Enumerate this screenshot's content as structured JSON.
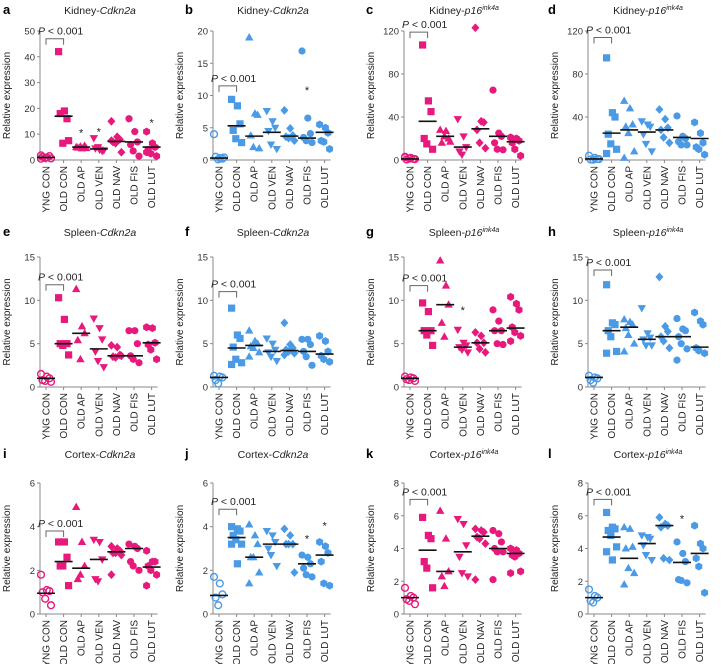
{
  "colors": {
    "pink": "#e8197d",
    "blue": "#4a9ae6",
    "median": "#111111"
  },
  "categories": [
    "YNG CON",
    "OLD CON",
    "OLD AP",
    "OLD VEN",
    "OLD NAV",
    "OLD FIS",
    "OLD LUT"
  ],
  "markers": [
    "open-circle",
    "square",
    "triangle-up",
    "triangle-down",
    "diamond",
    "circle",
    "hexagon"
  ],
  "ylabel": "Relative expression",
  "p_label": {
    "p": "P",
    "rest": " < 0.001"
  },
  "star": "*",
  "chart_data": [
    {
      "type": "scatter",
      "letter": "a",
      "tissue": "Kidney-",
      "gene": "Cdkn2a",
      "sup": "",
      "color": "pink",
      "ylim": [
        0,
        50
      ],
      "ticks": [
        0,
        10,
        20,
        30,
        40,
        50
      ],
      "bracket": 47,
      "points": [
        [
          0.5,
          1,
          1.5,
          1.2,
          0.8,
          0.6,
          1.8
        ],
        [
          42,
          19,
          16,
          18,
          6.5,
          7.5
        ],
        [
          5,
          4.5,
          5.5,
          4.8,
          5.2,
          4.6
        ],
        [
          8.5,
          4,
          3.5,
          4.5,
          5,
          3.8
        ],
        [
          15,
          9,
          8,
          7,
          6.5,
          3,
          7.5
        ],
        [
          16,
          11,
          7,
          6,
          3.5,
          1.5
        ],
        [
          11,
          6.5,
          5,
          4,
          2.5,
          1.5,
          3
        ]
      ],
      "medians": [
        1,
        17,
        5,
        4.3,
        7.2,
        7,
        5
      ],
      "stars": [
        [
          2,
          11
        ],
        [
          3,
          11.5
        ],
        [
          6,
          15
        ]
      ]
    },
    {
      "type": "scatter",
      "letter": "b",
      "tissue": "Kidney-",
      "gene": "Cdkn2a",
      "sup": "",
      "color": "blue",
      "ylim": [
        0,
        20
      ],
      "ticks": [
        0,
        5,
        10,
        15,
        20
      ],
      "bracket": 11.5,
      "points": [
        [
          4,
          0.3,
          0.2,
          0.5,
          0.1,
          0.4
        ],
        [
          9.4,
          8.4,
          5.6,
          4.6,
          3.3,
          2.7
        ],
        [
          19,
          7.2,
          7,
          3.8,
          2,
          1.8
        ],
        [
          7.6,
          6,
          5,
          4.5,
          2.4,
          1.7
        ],
        [
          7.7,
          4.9,
          3.8,
          3.6,
          3.4,
          3
        ],
        [
          16.9,
          6.5,
          4.1,
          3.5,
          3,
          2.7
        ],
        [
          5.5,
          5,
          4.2,
          3,
          2.8,
          1.7
        ]
      ],
      "medians": [
        0.3,
        5.3,
        3.7,
        4.3,
        3.7,
        3.4,
        4.3
      ],
      "stars": [
        [
          5,
          11
        ]
      ]
    },
    {
      "type": "scatter",
      "letter": "c",
      "tissue": "Kidney-",
      "gene": "p16",
      "sup": "ink4a",
      "color": "pink",
      "ylim": [
        0,
        120
      ],
      "ticks": [
        0,
        40,
        80,
        120
      ],
      "bracket": 119,
      "points": [
        [
          3,
          2,
          1,
          0.5,
          1.5,
          0.8,
          2.5
        ],
        [
          107,
          55,
          45,
          20,
          15,
          10
        ],
        [
          28,
          27,
          20,
          16,
          22,
          17
        ],
        [
          38,
          22,
          12,
          8,
          5
        ],
        [
          123,
          36,
          35,
          28,
          16,
          11
        ],
        [
          65,
          25,
          22,
          16,
          10,
          9.5
        ],
        [
          21,
          20,
          18,
          16,
          10,
          4
        ]
      ],
      "medians": [
        1,
        36,
        22,
        12,
        29,
        22,
        17
      ],
      "stars": []
    },
    {
      "type": "scatter",
      "letter": "d",
      "tissue": "Kidney-",
      "gene": "p16",
      "sup": "ink4a",
      "color": "blue",
      "ylim": [
        0,
        120
      ],
      "ticks": [
        0,
        40,
        80,
        120
      ],
      "bracket": 114,
      "points": [
        [
          4,
          2,
          1,
          0.5,
          0.3,
          0.8
        ],
        [
          95,
          44,
          40,
          24,
          15,
          10,
          6
        ],
        [
          55,
          48,
          33,
          31,
          25,
          8,
          2
        ],
        [
          36,
          33,
          31,
          24,
          15,
          8
        ],
        [
          47,
          38,
          30,
          28,
          21,
          16
        ],
        [
          41,
          22,
          20,
          17,
          14,
          14
        ],
        [
          35,
          25,
          16,
          12,
          10,
          5
        ]
      ],
      "medians": [
        1,
        25,
        28,
        26,
        28,
        21,
        20
      ],
      "stars": []
    },
    {
      "type": "scatter",
      "letter": "e",
      "tissue": "Spleen-",
      "gene": "Cdkn2a",
      "sup": "",
      "color": "pink",
      "ylim": [
        0,
        15
      ],
      "ticks": [
        0,
        5,
        10,
        15
      ],
      "bracket": 11.8,
      "points": [
        [
          1.5,
          1.2,
          1,
          0.8,
          0.7,
          0.6
        ],
        [
          10.3,
          7.8,
          5,
          5,
          4.8,
          3.7
        ],
        [
          11.3,
          7,
          6.2,
          5.4,
          3.2
        ],
        [
          7.9,
          6.8,
          5.5,
          4.1,
          3,
          2.3
        ],
        [
          4.8,
          4.6,
          3.7,
          3.5,
          3.4,
          3.6
        ],
        [
          6.5,
          6.5,
          5,
          3.6,
          3.2,
          2.8
        ],
        [
          6.9,
          6.8,
          5.1,
          4.9,
          4.3,
          3.2
        ]
      ],
      "medians": [
        1,
        5,
        6.2,
        4.4,
        3.6,
        3.6,
        5.1
      ],
      "stars": []
    },
    {
      "type": "scatter",
      "letter": "f",
      "tissue": "Spleen-",
      "gene": "Cdkn2a",
      "sup": "",
      "color": "blue",
      "ylim": [
        0,
        15
      ],
      "ticks": [
        0,
        5,
        10,
        15
      ],
      "bracket": 11,
      "points": [
        [
          1.3,
          1.2,
          1.1,
          0.8,
          0.4
        ],
        [
          9.1,
          6,
          5.6,
          4.6,
          3.2,
          2.8,
          2.6
        ],
        [
          6.5,
          5.3,
          5,
          4.7,
          4.5,
          4,
          3.5
        ],
        [
          5.6,
          5,
          4.3,
          4,
          3.5,
          3
        ],
        [
          7.4,
          4.9,
          4.5,
          4.3,
          4.1,
          3.9,
          3.7
        ],
        [
          5.5,
          5.5,
          4.9,
          4.1,
          3.5,
          2.5
        ],
        [
          5.9,
          5.3,
          4.1,
          3.6,
          3.2,
          2.9
        ]
      ],
      "medians": [
        1.1,
        4.5,
        4.8,
        4.1,
        4.2,
        4.1,
        3.8
      ],
      "stars": []
    },
    {
      "type": "scatter",
      "letter": "g",
      "tissue": "Spleen-",
      "gene": "p16",
      "sup": "ink4a",
      "color": "pink",
      "ylim": [
        0,
        15
      ],
      "ticks": [
        0,
        5,
        10,
        15
      ],
      "bracket": 11.7,
      "points": [
        [
          1.2,
          1.1,
          1,
          0.9,
          0.8,
          0.7
        ],
        [
          9.7,
          8.7,
          6.5,
          6.5,
          6,
          4.8
        ],
        [
          14.6,
          11.7,
          9.5,
          7.4,
          5.8
        ],
        [
          6.6,
          5.1,
          4.8,
          4.6,
          4.3,
          4
        ],
        [
          6.3,
          5.9,
          5.1,
          5.1,
          4.4,
          4
        ],
        [
          8.9,
          7.6,
          6.5,
          6.5,
          5,
          4.9
        ],
        [
          10.4,
          9.6,
          8.9,
          6.9,
          6.3,
          5.9,
          5.3
        ]
      ],
      "medians": [
        1,
        6.5,
        9.5,
        4.6,
        5.1,
        6.5,
        6.8
      ],
      "stars": [
        [
          3,
          9
        ]
      ]
    },
    {
      "type": "scatter",
      "letter": "h",
      "tissue": "Spleen-",
      "gene": "p16",
      "sup": "ink4a",
      "color": "blue",
      "ylim": [
        0,
        15
      ],
      "ticks": [
        0,
        5,
        10,
        15
      ],
      "bracket": 13.5,
      "points": [
        [
          1.3,
          1.1,
          1,
          0.8,
          0.5
        ],
        [
          11.8,
          7.4,
          7.2,
          6.5,
          5.8,
          4.1,
          3.9
        ],
        [
          7.8,
          7.5,
          7.2,
          6.8,
          6,
          5,
          4.1
        ],
        [
          9.1,
          6.2,
          5.7,
          5.5,
          4.8,
          4.8
        ],
        [
          12.7,
          7,
          6.4,
          5.8,
          5.3,
          4.5
        ],
        [
          7.9,
          6.7,
          6.5,
          5.8,
          5,
          4.4,
          3.1
        ],
        [
          8.6,
          7.6,
          7.2,
          4.5,
          4.2,
          3.9
        ]
      ],
      "medians": [
        1.1,
        6.5,
        6.9,
        5.5,
        5.8,
        5.8,
        4.6
      ],
      "stars": []
    },
    {
      "type": "scatter",
      "letter": "i",
      "tissue": "Cortex-",
      "gene": "Cdkn2a",
      "sup": "",
      "color": "pink",
      "ylim": [
        0,
        6
      ],
      "ticks": [
        0,
        2,
        4,
        6
      ],
      "bracket": 3.8,
      "points": [
        [
          1.8,
          1.1,
          1.05,
          1,
          0.7,
          0.4
        ],
        [
          3.3,
          3.3,
          2.6,
          2.2,
          2.2,
          1.3
        ],
        [
          4.9,
          3.3,
          2.2,
          1.6,
          1.8
        ],
        [
          3.4,
          3.3,
          2.5,
          1.6,
          1.5
        ],
        [
          3.1,
          3,
          2.9,
          2.8,
          2.8,
          2.7,
          1.8
        ],
        [
          3.2,
          3.1,
          3,
          2.4,
          2.2,
          2
        ],
        [
          2.9,
          2.4,
          2.4,
          2.2,
          2,
          1.8,
          1.3
        ]
      ],
      "medians": [
        0.95,
        2.4,
        2.1,
        2.5,
        2.85,
        3,
        2.15
      ],
      "stars": []
    },
    {
      "type": "scatter",
      "letter": "j",
      "tissue": "Cortex-",
      "gene": "Cdkn2a",
      "sup": "",
      "color": "blue",
      "ylim": [
        0,
        6
      ],
      "ticks": [
        0,
        2,
        4,
        6
      ],
      "bracket": 4.8,
      "points": [
        [
          1.7,
          1.4,
          0.9,
          0.75,
          0.4
        ],
        [
          4,
          3.9,
          3.8,
          3.6,
          3.4,
          3.2,
          3.2,
          2.3
        ],
        [
          4.1,
          3.6,
          3.2,
          2.6,
          2.6,
          1.9,
          1.4
        ],
        [
          3.8,
          3.6,
          3.3,
          3,
          2.7,
          2.2
        ],
        [
          3.9,
          3.6,
          3.2,
          3.2,
          3.2,
          1.9
        ],
        [
          2.7,
          2.6,
          2.3,
          2.1,
          1.8,
          1.7
        ],
        [
          3.3,
          3.1,
          2.8,
          2.4,
          1.4,
          1.3
        ]
      ],
      "medians": [
        0.85,
        3.5,
        2.6,
        3.2,
        3.2,
        2.3,
        2.7
      ],
      "stars": [
        [
          5,
          3.5
        ],
        [
          6,
          4.1
        ]
      ]
    },
    {
      "type": "scatter",
      "letter": "k",
      "tissue": "Cortex-",
      "gene": "p16",
      "sup": "ink4a",
      "color": "pink",
      "ylim": [
        0,
        8
      ],
      "ticks": [
        0,
        2,
        4,
        6,
        8
      ],
      "bracket": 7,
      "points": [
        [
          1.6,
          1.1,
          1,
          0.9,
          0.8,
          0.6
        ],
        [
          5.9,
          4.8,
          4.6,
          3.2,
          2.8,
          1.6
        ],
        [
          6.3,
          4.6,
          2.6,
          2.3,
          1.7
        ],
        [
          5.8,
          5.5,
          4.2,
          3.5,
          2.5,
          2.3
        ],
        [
          5.2,
          5.1,
          5,
          4.7,
          4.6,
          4.3,
          2.1
        ],
        [
          5.1,
          4.9,
          4.4,
          4,
          3.8,
          3.8,
          2.1
        ],
        [
          4,
          3.9,
          3.7,
          3.6,
          3.5,
          2.6,
          2.5
        ]
      ],
      "medians": [
        1,
        3.9,
        2.6,
        3.8,
        4.75,
        4,
        3.7
      ],
      "stars": []
    },
    {
      "type": "scatter",
      "letter": "l",
      "tissue": "Cortex-",
      "gene": "p16",
      "sup": "ink4a",
      "color": "blue",
      "ylim": [
        0,
        8
      ],
      "ticks": [
        0,
        2,
        4,
        6,
        8
      ],
      "bracket": 7,
      "points": [
        [
          1.5,
          1.1,
          1,
          0.8,
          0.7
        ],
        [
          6.2,
          5.3,
          5.2,
          5.1,
          4.8,
          4.1,
          3.8,
          3.3
        ],
        [
          5.3,
          5.2,
          4.1,
          4,
          2.8,
          2.5,
          1.8
        ],
        [
          4.8,
          4.7,
          4.6,
          4.2,
          3.6,
          3.3
        ],
        [
          5.9,
          5.5,
          5.4,
          5.3,
          3.4,
          3.3
        ],
        [
          4.4,
          3.7,
          3.2,
          2.1,
          2.05,
          1.9
        ],
        [
          5.4,
          4.3,
          4,
          3.4,
          2.9,
          1.3
        ]
      ],
      "medians": [
        1,
        4.7,
        3.4,
        4.3,
        5.4,
        3.15,
        3.7
      ],
      "stars": [
        [
          5,
          5.9
        ]
      ]
    }
  ]
}
